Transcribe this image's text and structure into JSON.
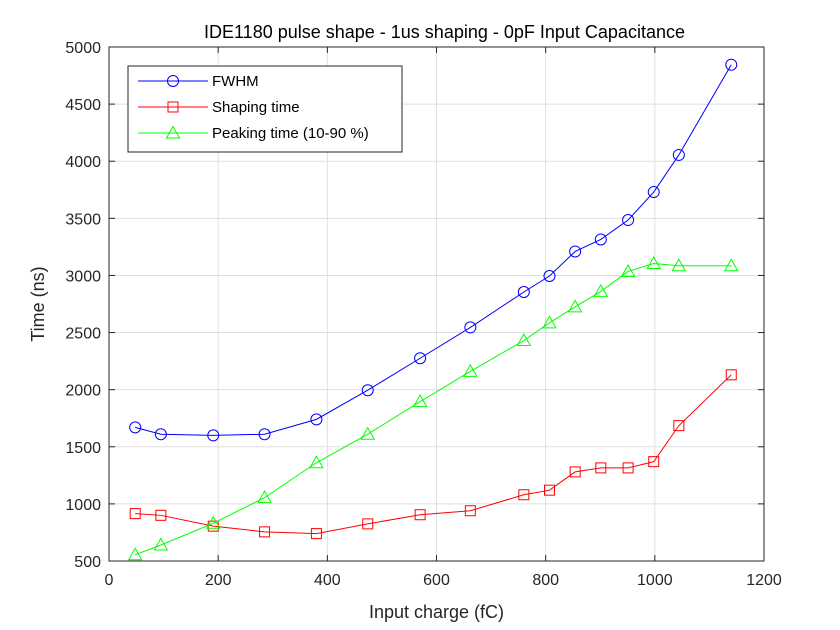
{
  "chart_data": {
    "type": "line",
    "title": "IDE1180 pulse shape - 1us shaping - 0pF Input Capacitance",
    "xlabel": "Input charge (fC)",
    "ylabel": "Time (ns)",
    "xlim": [
      0,
      1200
    ],
    "ylim": [
      500,
      5000
    ],
    "xticks": [
      0,
      200,
      400,
      600,
      800,
      1000,
      1200
    ],
    "yticks": [
      500,
      1000,
      1500,
      2000,
      2500,
      3000,
      3500,
      4000,
      4500,
      5000
    ],
    "grid": true,
    "legend_position": "top-left",
    "series": [
      {
        "name": "FWHM",
        "color": "#0000ff",
        "marker": "circle",
        "x": [
          48,
          95,
          191,
          285,
          380,
          474,
          570,
          662,
          760,
          807,
          854,
          901,
          951,
          998,
          1044,
          1140
        ],
        "y": [
          1670,
          1610,
          1600,
          1610,
          1740,
          1995,
          2275,
          2545,
          2855,
          2995,
          3210,
          3315,
          3485,
          3730,
          4055,
          4845
        ]
      },
      {
        "name": "Shaping time",
        "color": "#ff0000",
        "marker": "square",
        "x": [
          48,
          95,
          191,
          285,
          380,
          474,
          570,
          662,
          760,
          807,
          854,
          901,
          951,
          998,
          1044,
          1140
        ],
        "y": [
          915,
          900,
          805,
          755,
          740,
          825,
          905,
          940,
          1080,
          1120,
          1280,
          1315,
          1315,
          1370,
          1685,
          2130
        ]
      },
      {
        "name": "Peaking time (10-90 %)",
        "color": "#00ff00",
        "marker": "triangle",
        "x": [
          48,
          95,
          191,
          285,
          380,
          474,
          570,
          662,
          760,
          807,
          854,
          901,
          951,
          998,
          1044,
          1140
        ],
        "y": [
          555,
          640,
          830,
          1055,
          1360,
          1610,
          1895,
          2160,
          2430,
          2585,
          2725,
          2860,
          3035,
          3105,
          3085,
          3085
        ]
      }
    ]
  }
}
